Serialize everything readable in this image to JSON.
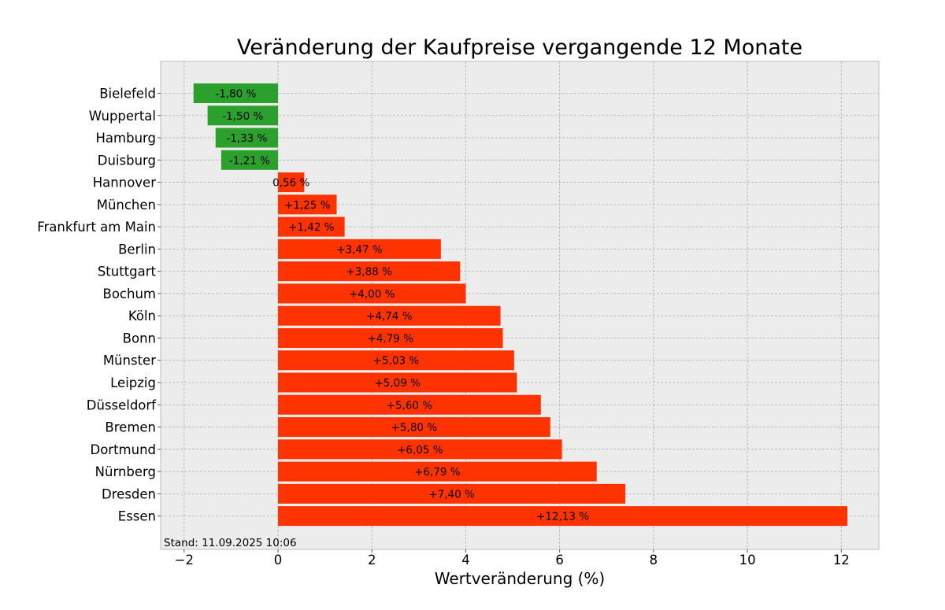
{
  "chart_data": {
    "type": "bar",
    "orientation": "horizontal",
    "title": "Veränderung der Kaufpreise vergangende 12 Monate",
    "xlabel": "Wertveränderung (%)",
    "ylabel": "",
    "xlim": [
      -2.5,
      12.8
    ],
    "xticks": [
      -2,
      0,
      2,
      4,
      6,
      8,
      10,
      12
    ],
    "xtick_labels": [
      "−2",
      "0",
      "2",
      "4",
      "6",
      "8",
      "10",
      "12"
    ],
    "grid": true,
    "footnote": "Stand: 11.09.2025 10:06",
    "colors": {
      "negative": "#2ca02c",
      "positive": "#ff3300",
      "background": "#ececec",
      "grid": "#b0b0b0"
    },
    "categories": [
      "Bielefeld",
      "Wuppertal",
      "Hamburg",
      "Duisburg",
      "Hannover",
      "München",
      "Frankfurt am Main",
      "Berlin",
      "Stuttgart",
      "Bochum",
      "Köln",
      "Bonn",
      "Münster",
      "Leipzig",
      "Düsseldorf",
      "Bremen",
      "Dortmund",
      "Nürnberg",
      "Dresden",
      "Essen"
    ],
    "values": [
      -1.8,
      -1.5,
      -1.33,
      -1.21,
      0.56,
      1.25,
      1.42,
      3.47,
      3.88,
      4.0,
      4.74,
      4.79,
      5.03,
      5.09,
      5.6,
      5.8,
      6.05,
      6.79,
      7.4,
      12.13
    ],
    "data_labels": [
      "-1,80 %",
      "-1,50 %",
      "-1,33 %",
      "-1,21 %",
      "0,56 %",
      "+1,25 %",
      "+1,42 %",
      "+3,47 %",
      "+3,88 %",
      "+4,00 %",
      "+4,74 %",
      "+4,79 %",
      "+5,03 %",
      "+5,09 %",
      "+5,60 %",
      "+5,80 %",
      "+6,05 %",
      "+6,79 %",
      "+7,40 %",
      "+12,13 %"
    ]
  }
}
